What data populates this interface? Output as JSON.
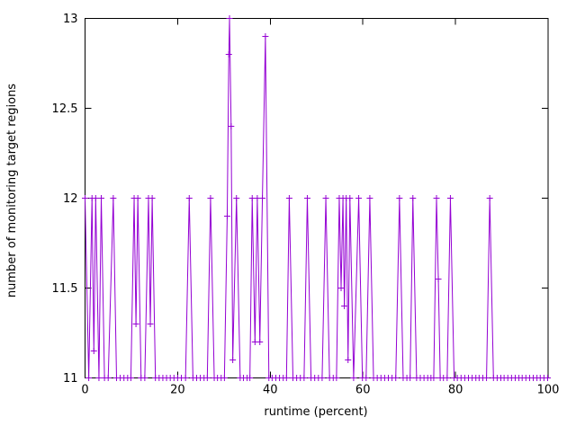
{
  "figure": {
    "background": "#ffffff",
    "axis_color": "#000000",
    "text_color": "#000000"
  },
  "chart_data": {
    "type": "line",
    "style": "linespoints",
    "title": "",
    "xlabel": "runtime (percent)",
    "ylabel": "number of monitoring target regions",
    "xlim": [
      0,
      100
    ],
    "ylim": [
      11,
      13
    ],
    "xtick_labels": [
      "0",
      "20",
      "40",
      "60",
      "80",
      "100"
    ],
    "xtick_values": [
      0,
      20,
      40,
      60,
      80,
      100
    ],
    "ytick_labels": [
      "11",
      "11.5",
      "12",
      "12.5",
      "13"
    ],
    "ytick_values": [
      11,
      11.5,
      12,
      12.5,
      13
    ],
    "grid": false,
    "legend": "none",
    "series": [
      {
        "name": "monitoring target regions",
        "color": "#9400d3",
        "marker": "plus",
        "points": [
          [
            0,
            12
          ],
          [
            0.8,
            11
          ],
          [
            1.5,
            12
          ],
          [
            1.9,
            11.15
          ],
          [
            2.3,
            12
          ],
          [
            3.0,
            11
          ],
          [
            3.5,
            12
          ],
          [
            4.2,
            11
          ],
          [
            5.0,
            11
          ],
          [
            6.1,
            12
          ],
          [
            6.8,
            11
          ],
          [
            7.6,
            11
          ],
          [
            8.4,
            11
          ],
          [
            9.2,
            11
          ],
          [
            9.9,
            11
          ],
          [
            10.6,
            12
          ],
          [
            11.0,
            11.3
          ],
          [
            11.4,
            12
          ],
          [
            12.1,
            11
          ],
          [
            12.9,
            11
          ],
          [
            13.7,
            12
          ],
          [
            14.1,
            11.3
          ],
          [
            14.5,
            12
          ],
          [
            15.2,
            11
          ],
          [
            16.0,
            11
          ],
          [
            16.8,
            11
          ],
          [
            17.6,
            11
          ],
          [
            18.4,
            11
          ],
          [
            19.2,
            11
          ],
          [
            20.0,
            11
          ],
          [
            20.8,
            11
          ],
          [
            21.7,
            11
          ],
          [
            22.5,
            12
          ],
          [
            23.3,
            11
          ],
          [
            24.1,
            11
          ],
          [
            24.9,
            11
          ],
          [
            25.7,
            11
          ],
          [
            26.4,
            11
          ],
          [
            27.1,
            12
          ],
          [
            27.9,
            11
          ],
          [
            28.6,
            11
          ],
          [
            29.4,
            11
          ],
          [
            30.1,
            11
          ],
          [
            30.7,
            11.9
          ],
          [
            31.05,
            12.8
          ],
          [
            31.2,
            13
          ],
          [
            31.55,
            12.4
          ],
          [
            31.9,
            11.1
          ],
          [
            32.7,
            12
          ],
          [
            33.5,
            11
          ],
          [
            34.2,
            11
          ],
          [
            35.0,
            11
          ],
          [
            35.6,
            11
          ],
          [
            36.1,
            12
          ],
          [
            36.7,
            11.2
          ],
          [
            37.2,
            12
          ],
          [
            37.75,
            11.2
          ],
          [
            38.3,
            12
          ],
          [
            38.95,
            12.9
          ],
          [
            39.7,
            11
          ],
          [
            40.4,
            11
          ],
          [
            41.2,
            11
          ],
          [
            42.0,
            11
          ],
          [
            42.8,
            11
          ],
          [
            43.5,
            11
          ],
          [
            44.1,
            12
          ],
          [
            44.9,
            11
          ],
          [
            45.7,
            11
          ],
          [
            46.5,
            11
          ],
          [
            47.3,
            11
          ],
          [
            48.0,
            12
          ],
          [
            48.8,
            11
          ],
          [
            49.6,
            11
          ],
          [
            50.4,
            11
          ],
          [
            51.2,
            11
          ],
          [
            52.0,
            12
          ],
          [
            52.8,
            11
          ],
          [
            53.6,
            11
          ],
          [
            54.3,
            11
          ],
          [
            54.9,
            12
          ],
          [
            55.3,
            11.5
          ],
          [
            55.7,
            12
          ],
          [
            56.0,
            11.4
          ],
          [
            56.4,
            12
          ],
          [
            56.8,
            11.1
          ],
          [
            57.2,
            12
          ],
          [
            58.0,
            11
          ],
          [
            59.1,
            12
          ],
          [
            59.9,
            11
          ],
          [
            60.7,
            11
          ],
          [
            61.5,
            12
          ],
          [
            62.3,
            11
          ],
          [
            63.1,
            11
          ],
          [
            63.9,
            11
          ],
          [
            64.7,
            11
          ],
          [
            65.5,
            11
          ],
          [
            66.3,
            11
          ],
          [
            67.1,
            11
          ],
          [
            67.9,
            12
          ],
          [
            68.7,
            11
          ],
          [
            69.5,
            11
          ],
          [
            70.2,
            11
          ],
          [
            70.8,
            12
          ],
          [
            71.6,
            11
          ],
          [
            72.4,
            11
          ],
          [
            73.2,
            11
          ],
          [
            74.0,
            11
          ],
          [
            74.7,
            11
          ],
          [
            75.3,
            11
          ],
          [
            75.9,
            12
          ],
          [
            76.3,
            11.55
          ],
          [
            76.7,
            11
          ],
          [
            77.4,
            11
          ],
          [
            78.2,
            11
          ],
          [
            78.9,
            12
          ],
          [
            79.7,
            11
          ],
          [
            80.4,
            11
          ],
          [
            81.2,
            11
          ],
          [
            82.0,
            11
          ],
          [
            82.8,
            11
          ],
          [
            83.6,
            11
          ],
          [
            84.4,
            11
          ],
          [
            85.1,
            11
          ],
          [
            85.9,
            11
          ],
          [
            86.7,
            11
          ],
          [
            87.4,
            12
          ],
          [
            88.2,
            11
          ],
          [
            89.0,
            11
          ],
          [
            89.8,
            11
          ],
          [
            90.5,
            11
          ],
          [
            91.3,
            11
          ],
          [
            92.1,
            11
          ],
          [
            92.9,
            11
          ],
          [
            93.7,
            11
          ],
          [
            94.4,
            11
          ],
          [
            95.2,
            11
          ],
          [
            96.0,
            11
          ],
          [
            96.8,
            11
          ],
          [
            97.6,
            11
          ],
          [
            98.3,
            11
          ],
          [
            99.1,
            11
          ],
          [
            99.9,
            11
          ]
        ]
      }
    ]
  }
}
